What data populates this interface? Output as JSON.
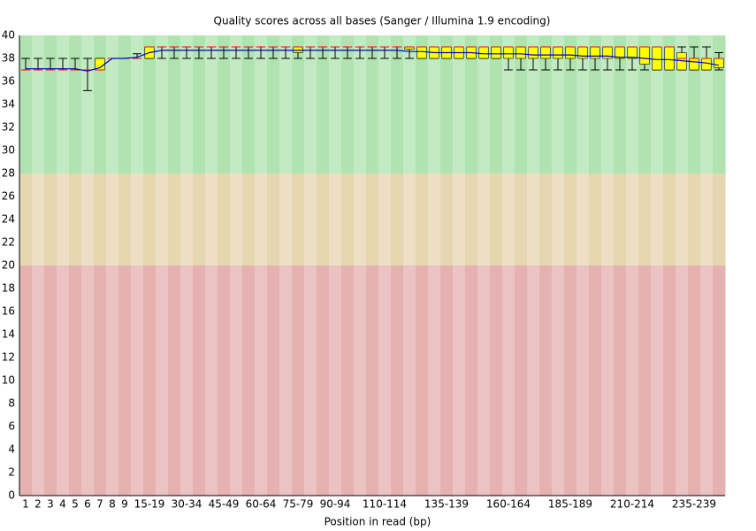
{
  "chart_data": {
    "type": "boxplot",
    "title": "Quality scores across all bases (Sanger / Illumina 1.9 encoding)",
    "x_label": "Position in read (bp)",
    "categories": [
      "1",
      "2",
      "3",
      "4",
      "5",
      "6",
      "7",
      "8",
      "9",
      null,
      "15-19",
      null,
      null,
      "30-34",
      null,
      null,
      "45-49",
      null,
      null,
      "60-64",
      null,
      null,
      "75-79",
      null,
      null,
      "90-94",
      null,
      null,
      null,
      "110-114",
      null,
      null,
      null,
      null,
      "135-139",
      null,
      null,
      null,
      null,
      "160-164",
      null,
      null,
      null,
      null,
      "185-189",
      null,
      null,
      null,
      null,
      "210-214",
      null,
      null,
      null,
      null,
      "235-239",
      null,
      null
    ],
    "whisker_low": [
      37,
      37,
      37,
      37,
      37,
      35.2,
      37,
      38,
      38,
      38,
      38,
      38,
      38,
      38,
      38,
      38,
      38,
      38,
      38,
      38,
      38,
      38,
      38,
      38,
      38,
      38,
      38,
      38,
      38,
      38,
      38,
      38,
      38,
      38,
      38,
      38,
      38,
      38,
      38,
      37,
      37,
      37,
      37,
      37,
      37,
      37,
      37,
      37,
      37,
      37,
      37,
      37,
      37,
      37,
      37,
      37,
      37
    ],
    "q1": [
      37,
      37,
      37,
      37,
      37,
      37,
      37,
      38,
      38,
      38,
      38,
      39,
      39,
      39,
      39,
      39,
      39,
      39,
      39,
      39,
      39,
      39,
      38.5,
      39,
      39,
      39,
      39,
      39,
      39,
      39,
      39,
      38.8,
      38,
      38,
      38,
      38,
      38,
      38,
      38,
      38,
      38,
      38,
      38,
      38,
      38,
      38,
      38,
      38,
      38,
      38,
      37.5,
      37,
      37,
      37,
      37,
      37,
      37.2
    ],
    "median": [
      37,
      37,
      37,
      37,
      37,
      37,
      37,
      38,
      38,
      38,
      39,
      39,
      39,
      39,
      39,
      39,
      39,
      39,
      39,
      39,
      39,
      39,
      39,
      39,
      39,
      39,
      39,
      39,
      39,
      39,
      39,
      39,
      39,
      39,
      39,
      39,
      39,
      39,
      39,
      39,
      39,
      39,
      39,
      39,
      39,
      39,
      39,
      39,
      39,
      39,
      39,
      39,
      39,
      38,
      38,
      38,
      38
    ],
    "q3": [
      37,
      37,
      37,
      37,
      37,
      37,
      38,
      38,
      38,
      38,
      39,
      39,
      39,
      39,
      39,
      39,
      39,
      39,
      39,
      39,
      39,
      39,
      39,
      39,
      39,
      39,
      39,
      39,
      39,
      39,
      39,
      39,
      39,
      39,
      39,
      39,
      39,
      39,
      39,
      39,
      39,
      39,
      39,
      39,
      39,
      39,
      39,
      39,
      39,
      39,
      39,
      39,
      39,
      38.5,
      38,
      38,
      38
    ],
    "whisker_high": [
      38,
      38,
      38,
      38,
      38,
      38,
      38,
      38,
      38,
      38.4,
      39,
      39,
      39,
      39,
      39,
      39,
      39,
      39,
      39,
      39,
      39,
      39,
      39,
      39,
      39,
      39,
      39,
      39,
      39,
      39,
      39,
      39,
      39,
      39,
      39,
      39,
      39,
      39,
      39,
      39,
      39,
      39,
      39,
      39,
      39,
      39,
      39,
      39,
      39,
      39,
      39,
      39,
      39,
      39,
      39,
      39,
      38.5
    ],
    "mean": [
      37.1,
      37.1,
      37.1,
      37.1,
      37.1,
      36.9,
      37.2,
      38,
      38,
      38.1,
      38.5,
      38.7,
      38.7,
      38.7,
      38.7,
      38.7,
      38.7,
      38.7,
      38.7,
      38.7,
      38.7,
      38.7,
      38.7,
      38.7,
      38.7,
      38.7,
      38.7,
      38.7,
      38.7,
      38.7,
      38.7,
      38.6,
      38.6,
      38.5,
      38.5,
      38.5,
      38.5,
      38.4,
      38.4,
      38.4,
      38.4,
      38.3,
      38.3,
      38.3,
      38.3,
      38.2,
      38.2,
      38.2,
      38.1,
      38.1,
      38.0,
      37.9,
      37.9,
      37.8,
      37.7,
      37.6,
      37.4
    ],
    "box_color": "#ffff00",
    "median_color": "#ff0000",
    "mean_color": "#0000cc",
    "zones": [
      {
        "from": 28,
        "to": 40,
        "colors": [
          "#b0e3b0",
          "#c3ebc3"
        ]
      },
      {
        "from": 20,
        "to": 28,
        "colors": [
          "#e6d7b1",
          "#ecdfc3"
        ]
      },
      {
        "from": 0,
        "to": 20,
        "colors": [
          "#e6b1b1",
          "#ecc3c3"
        ]
      }
    ],
    "ylim": [
      0,
      40
    ],
    "yticks": [
      0,
      2,
      4,
      6,
      8,
      10,
      12,
      14,
      16,
      18,
      20,
      22,
      24,
      26,
      28,
      30,
      32,
      34,
      36,
      38,
      40
    ]
  }
}
